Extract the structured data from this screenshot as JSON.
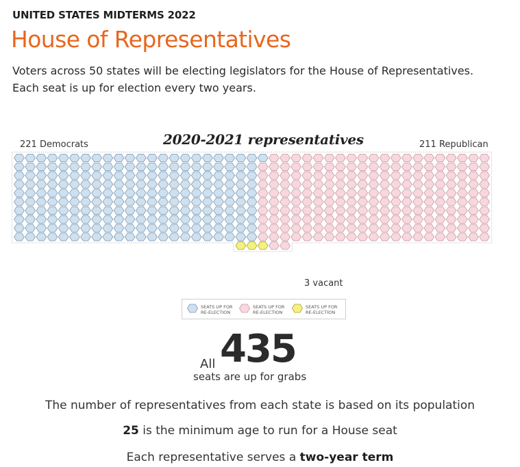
{
  "header": {
    "kicker": "UNITED STATES MIDTERMS 2022",
    "title": "House of Representatives",
    "lede_line1": "Voters across 50 states will be electing legislators for the House of Representatives.",
    "lede_line2": "Each seat is up for election every two years."
  },
  "seat_chart": {
    "title": "2020-2021 representatives",
    "left_label": "221 Democrats",
    "right_label": "211 Republican",
    "vacant_label": "3 vacant",
    "colors": {
      "democrat_fill": "#cfe0ef",
      "democrat_stroke": "#7f9bb5",
      "republican_fill": "#f8d8df",
      "republican_stroke": "#c99aa5",
      "vacant_fill": "#f6f17e",
      "vacant_stroke": "#a8a33a"
    }
  },
  "legend": {
    "items": [
      {
        "label_line1": "SEATS UP FOR",
        "label_line2": "RE-ELECTION",
        "color": "#cfe0ef"
      },
      {
        "label_line1": "SEATS UP FOR",
        "label_line2": "RE-ELECTION",
        "color": "#f8d8df"
      },
      {
        "label_line1": "SEATS UP FOR",
        "label_line2": "RE-ELECTION",
        "color": "#f6f17e"
      }
    ]
  },
  "totals": {
    "prefix": "All",
    "number": "435",
    "suffix": "seats are up for grabs"
  },
  "facts": {
    "population": "The number of representatives from each state is based on its population",
    "age_value": "25",
    "age_text": " is the minimum age to run for a House seat",
    "term_text": "Each representative serves a ",
    "term_value": "two-year term"
  },
  "chart_data": {
    "type": "waffle",
    "title": "2020-2021 representatives",
    "series": [
      {
        "name": "221 Democrats",
        "value": 221
      },
      {
        "name": "211 Republican",
        "value": 211
      },
      {
        "name": "3 vacant",
        "value": 3
      }
    ],
    "total": 435
  }
}
